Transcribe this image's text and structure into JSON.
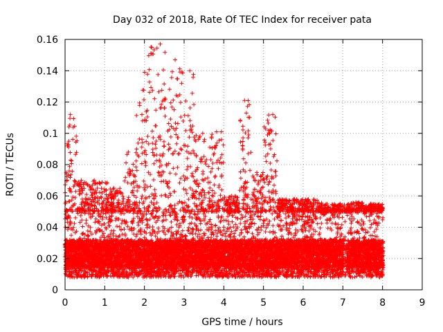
{
  "chart_data": {
    "type": "scatter",
    "title": "Day 032 of 2018, Rate Of TEC Index for receiver pata",
    "xlabel": "GPS time / hours",
    "ylabel": "ROTI / TECUs",
    "xlim": [
      0,
      9
    ],
    "ylim": [
      0,
      0.16
    ],
    "xticks": [
      0,
      1,
      2,
      3,
      4,
      5,
      6,
      7,
      8,
      9
    ],
    "xtick_labels": [
      "0",
      "1",
      "2",
      "3",
      "4",
      "5",
      "6",
      "7",
      "8",
      "9"
    ],
    "yticks": [
      0,
      0.02,
      0.04,
      0.06,
      0.08,
      0.1,
      0.12,
      0.14,
      0.16
    ],
    "ytick_labels": [
      "0",
      "0.02",
      "0.04",
      "0.06",
      "0.08",
      "0.1",
      "0.12",
      "0.14",
      "0.16"
    ],
    "grid": true,
    "marker": "plus",
    "marker_color": "#ff0000",
    "series": [
      {
        "name": "ROTI",
        "x_range": [
          0,
          8.02
        ],
        "baseline": {
          "floor": 0.008,
          "core_low": 0.014,
          "core_high": 0.032,
          "upper": 0.05
        },
        "excursions": [
          {
            "x_start": 0.0,
            "x_end": 0.05,
            "y_peak": 0.075
          },
          {
            "x_start": 0.05,
            "x_end": 0.3,
            "y_peak": 0.112
          },
          {
            "x_start": 0.3,
            "x_end": 1.1,
            "y_peak": 0.07
          },
          {
            "x_start": 1.1,
            "x_end": 1.5,
            "y_peak": 0.065
          },
          {
            "x_start": 1.5,
            "x_end": 1.8,
            "y_peak": 0.088
          },
          {
            "x_start": 1.8,
            "x_end": 2.1,
            "y_peak": 0.139
          },
          {
            "x_start": 2.1,
            "x_end": 2.6,
            "y_peak": 0.157
          },
          {
            "x_start": 2.6,
            "x_end": 2.9,
            "y_peak": 0.147
          },
          {
            "x_start": 2.9,
            "x_end": 3.25,
            "y_peak": 0.14
          },
          {
            "x_start": 3.25,
            "x_end": 3.6,
            "y_peak": 0.1
          },
          {
            "x_start": 3.6,
            "x_end": 4.0,
            "y_peak": 0.101
          },
          {
            "x_start": 4.0,
            "x_end": 4.4,
            "y_peak": 0.06
          },
          {
            "x_start": 4.4,
            "x_end": 4.7,
            "y_peak": 0.121
          },
          {
            "x_start": 4.7,
            "x_end": 5.0,
            "y_peak": 0.075
          },
          {
            "x_start": 5.0,
            "x_end": 5.35,
            "y_peak": 0.112
          },
          {
            "x_start": 5.35,
            "x_end": 6.5,
            "y_peak": 0.058
          },
          {
            "x_start": 6.5,
            "x_end": 7.2,
            "y_peak": 0.05
          },
          {
            "x_start": 7.2,
            "x_end": 7.5,
            "y_peak": 0.056
          },
          {
            "x_start": 7.5,
            "x_end": 8.02,
            "y_peak": 0.047
          }
        ]
      }
    ]
  }
}
